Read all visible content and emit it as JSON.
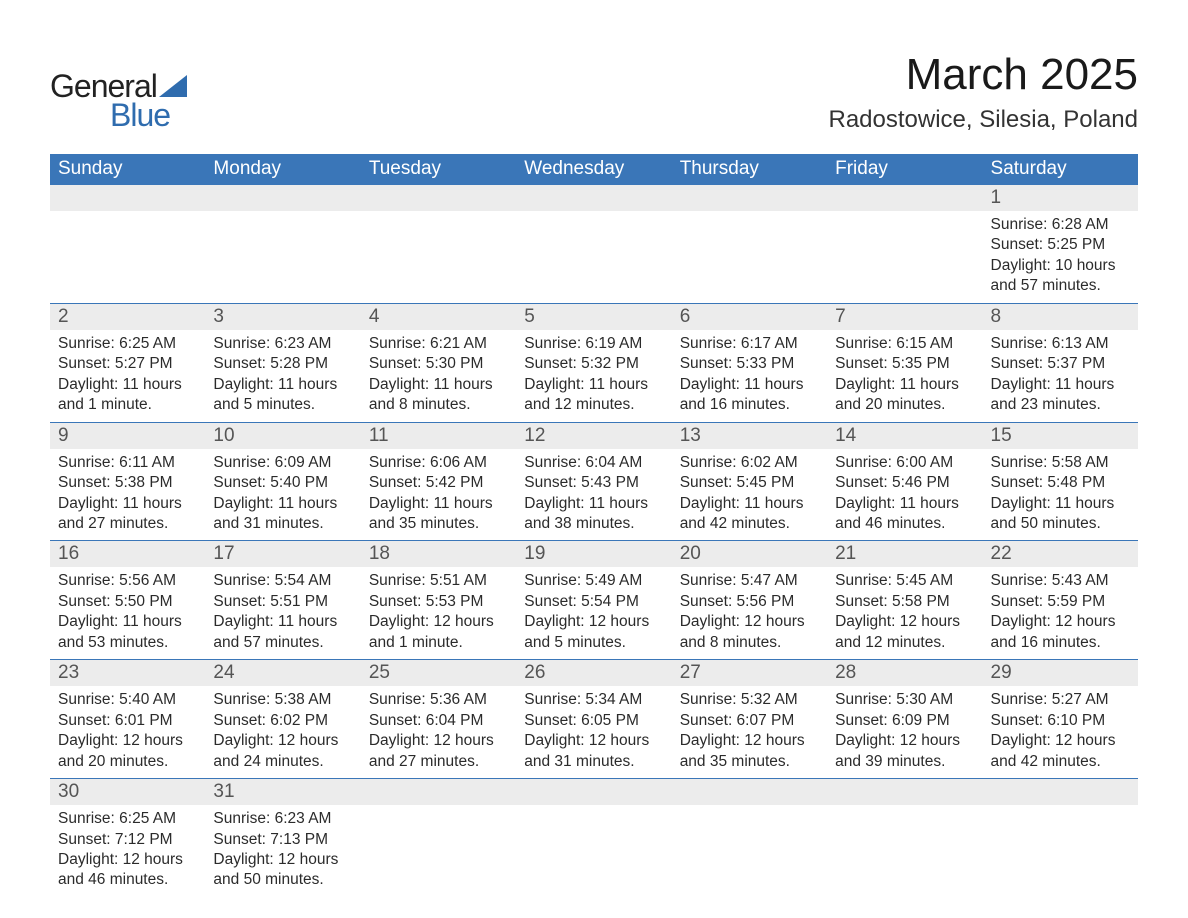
{
  "logo": {
    "word1": "General",
    "word2": "Blue"
  },
  "title": "March 2025",
  "location": "Radostowice, Silesia, Poland",
  "colors": {
    "brand_blue": "#3a76b8",
    "logo_blue": "#2f6cae",
    "row_gray": "#ececec",
    "text_dark": "#1a1a1a",
    "text_body": "#2b2b2b"
  },
  "day_headers": [
    "Sunday",
    "Monday",
    "Tuesday",
    "Wednesday",
    "Thursday",
    "Friday",
    "Saturday"
  ],
  "weeks": [
    [
      null,
      null,
      null,
      null,
      null,
      null,
      {
        "n": "1",
        "sr": "Sunrise: 6:28 AM",
        "ss": "Sunset: 5:25 PM",
        "d1": "Daylight: 10 hours",
        "d2": "and 57 minutes."
      }
    ],
    [
      {
        "n": "2",
        "sr": "Sunrise: 6:25 AM",
        "ss": "Sunset: 5:27 PM",
        "d1": "Daylight: 11 hours",
        "d2": "and 1 minute."
      },
      {
        "n": "3",
        "sr": "Sunrise: 6:23 AM",
        "ss": "Sunset: 5:28 PM",
        "d1": "Daylight: 11 hours",
        "d2": "and 5 minutes."
      },
      {
        "n": "4",
        "sr": "Sunrise: 6:21 AM",
        "ss": "Sunset: 5:30 PM",
        "d1": "Daylight: 11 hours",
        "d2": "and 8 minutes."
      },
      {
        "n": "5",
        "sr": "Sunrise: 6:19 AM",
        "ss": "Sunset: 5:32 PM",
        "d1": "Daylight: 11 hours",
        "d2": "and 12 minutes."
      },
      {
        "n": "6",
        "sr": "Sunrise: 6:17 AM",
        "ss": "Sunset: 5:33 PM",
        "d1": "Daylight: 11 hours",
        "d2": "and 16 minutes."
      },
      {
        "n": "7",
        "sr": "Sunrise: 6:15 AM",
        "ss": "Sunset: 5:35 PM",
        "d1": "Daylight: 11 hours",
        "d2": "and 20 minutes."
      },
      {
        "n": "8",
        "sr": "Sunrise: 6:13 AM",
        "ss": "Sunset: 5:37 PM",
        "d1": "Daylight: 11 hours",
        "d2": "and 23 minutes."
      }
    ],
    [
      {
        "n": "9",
        "sr": "Sunrise: 6:11 AM",
        "ss": "Sunset: 5:38 PM",
        "d1": "Daylight: 11 hours",
        "d2": "and 27 minutes."
      },
      {
        "n": "10",
        "sr": "Sunrise: 6:09 AM",
        "ss": "Sunset: 5:40 PM",
        "d1": "Daylight: 11 hours",
        "d2": "and 31 minutes."
      },
      {
        "n": "11",
        "sr": "Sunrise: 6:06 AM",
        "ss": "Sunset: 5:42 PM",
        "d1": "Daylight: 11 hours",
        "d2": "and 35 minutes."
      },
      {
        "n": "12",
        "sr": "Sunrise: 6:04 AM",
        "ss": "Sunset: 5:43 PM",
        "d1": "Daylight: 11 hours",
        "d2": "and 38 minutes."
      },
      {
        "n": "13",
        "sr": "Sunrise: 6:02 AM",
        "ss": "Sunset: 5:45 PM",
        "d1": "Daylight: 11 hours",
        "d2": "and 42 minutes."
      },
      {
        "n": "14",
        "sr": "Sunrise: 6:00 AM",
        "ss": "Sunset: 5:46 PM",
        "d1": "Daylight: 11 hours",
        "d2": "and 46 minutes."
      },
      {
        "n": "15",
        "sr": "Sunrise: 5:58 AM",
        "ss": "Sunset: 5:48 PM",
        "d1": "Daylight: 11 hours",
        "d2": "and 50 minutes."
      }
    ],
    [
      {
        "n": "16",
        "sr": "Sunrise: 5:56 AM",
        "ss": "Sunset: 5:50 PM",
        "d1": "Daylight: 11 hours",
        "d2": "and 53 minutes."
      },
      {
        "n": "17",
        "sr": "Sunrise: 5:54 AM",
        "ss": "Sunset: 5:51 PM",
        "d1": "Daylight: 11 hours",
        "d2": "and 57 minutes."
      },
      {
        "n": "18",
        "sr": "Sunrise: 5:51 AM",
        "ss": "Sunset: 5:53 PM",
        "d1": "Daylight: 12 hours",
        "d2": "and 1 minute."
      },
      {
        "n": "19",
        "sr": "Sunrise: 5:49 AM",
        "ss": "Sunset: 5:54 PM",
        "d1": "Daylight: 12 hours",
        "d2": "and 5 minutes."
      },
      {
        "n": "20",
        "sr": "Sunrise: 5:47 AM",
        "ss": "Sunset: 5:56 PM",
        "d1": "Daylight: 12 hours",
        "d2": "and 8 minutes."
      },
      {
        "n": "21",
        "sr": "Sunrise: 5:45 AM",
        "ss": "Sunset: 5:58 PM",
        "d1": "Daylight: 12 hours",
        "d2": "and 12 minutes."
      },
      {
        "n": "22",
        "sr": "Sunrise: 5:43 AM",
        "ss": "Sunset: 5:59 PM",
        "d1": "Daylight: 12 hours",
        "d2": "and 16 minutes."
      }
    ],
    [
      {
        "n": "23",
        "sr": "Sunrise: 5:40 AM",
        "ss": "Sunset: 6:01 PM",
        "d1": "Daylight: 12 hours",
        "d2": "and 20 minutes."
      },
      {
        "n": "24",
        "sr": "Sunrise: 5:38 AM",
        "ss": "Sunset: 6:02 PM",
        "d1": "Daylight: 12 hours",
        "d2": "and 24 minutes."
      },
      {
        "n": "25",
        "sr": "Sunrise: 5:36 AM",
        "ss": "Sunset: 6:04 PM",
        "d1": "Daylight: 12 hours",
        "d2": "and 27 minutes."
      },
      {
        "n": "26",
        "sr": "Sunrise: 5:34 AM",
        "ss": "Sunset: 6:05 PM",
        "d1": "Daylight: 12 hours",
        "d2": "and 31 minutes."
      },
      {
        "n": "27",
        "sr": "Sunrise: 5:32 AM",
        "ss": "Sunset: 6:07 PM",
        "d1": "Daylight: 12 hours",
        "d2": "and 35 minutes."
      },
      {
        "n": "28",
        "sr": "Sunrise: 5:30 AM",
        "ss": "Sunset: 6:09 PM",
        "d1": "Daylight: 12 hours",
        "d2": "and 39 minutes."
      },
      {
        "n": "29",
        "sr": "Sunrise: 5:27 AM",
        "ss": "Sunset: 6:10 PM",
        "d1": "Daylight: 12 hours",
        "d2": "and 42 minutes."
      }
    ],
    [
      {
        "n": "30",
        "sr": "Sunrise: 6:25 AM",
        "ss": "Sunset: 7:12 PM",
        "d1": "Daylight: 12 hours",
        "d2": "and 46 minutes."
      },
      {
        "n": "31",
        "sr": "Sunrise: 6:23 AM",
        "ss": "Sunset: 7:13 PM",
        "d1": "Daylight: 12 hours",
        "d2": "and 50 minutes."
      },
      null,
      null,
      null,
      null,
      null
    ]
  ]
}
